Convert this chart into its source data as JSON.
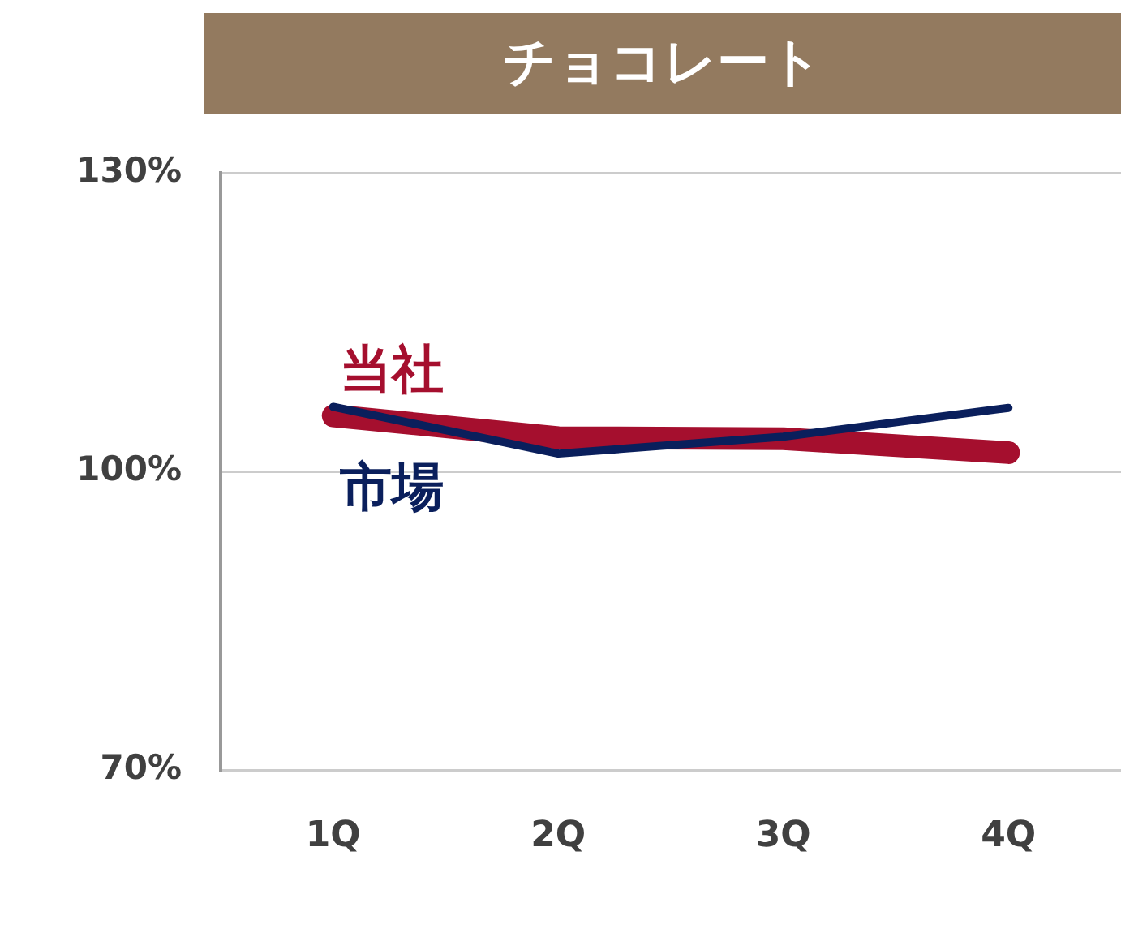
{
  "chart_data": {
    "type": "line",
    "title": "チョコレート",
    "categories": [
      "1Q",
      "2Q",
      "3Q",
      "4Q"
    ],
    "series": [
      {
        "name": "当社",
        "color": "#a50f2e",
        "values": [
          105.6,
          103.4,
          103.3,
          101.9
        ]
      },
      {
        "name": "市場",
        "color": "#0a1f5c",
        "values": [
          106.5,
          101.8,
          103.5,
          106.4
        ]
      }
    ],
    "ylim": [
      70,
      130
    ],
    "yticks": [
      {
        "value": 70,
        "label": "70%"
      },
      {
        "value": 100,
        "label": "100%"
      },
      {
        "value": 130,
        "label": "130%"
      }
    ],
    "grid": "y",
    "legend": false,
    "marker": "none",
    "line_style": "solid"
  }
}
